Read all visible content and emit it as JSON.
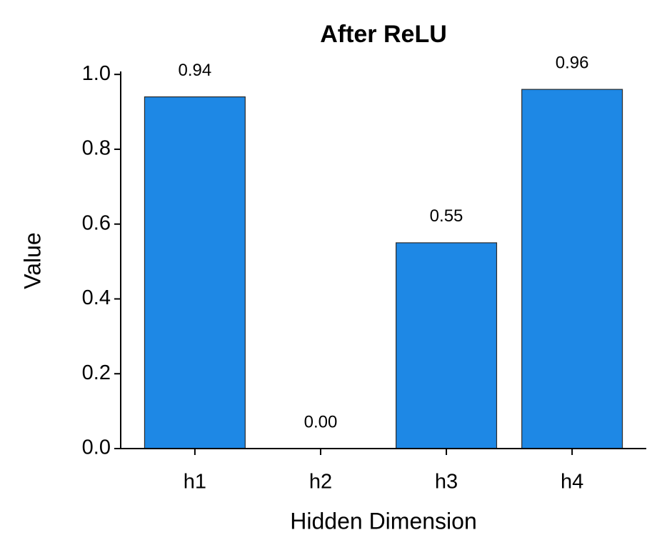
{
  "chart_data": {
    "type": "bar",
    "title": "After ReLU",
    "x_label": "Hidden Dimension",
    "y_label": "Value",
    "categories": [
      "h1",
      "h2",
      "h3",
      "h4"
    ],
    "values": [
      0.94,
      0.0,
      0.55,
      0.96
    ],
    "value_labels": [
      "0.94",
      "0.00",
      "0.55",
      "0.96"
    ],
    "color": "#1e88e5",
    "ylim": [
      0,
      1.008
    ],
    "yticks": [
      {
        "value": 0,
        "label": "0.0"
      },
      0.2,
      0.4,
      0.6,
      0.8,
      {
        "value": 1,
        "label": "1.0"
      }
    ],
    "grid": false
  }
}
